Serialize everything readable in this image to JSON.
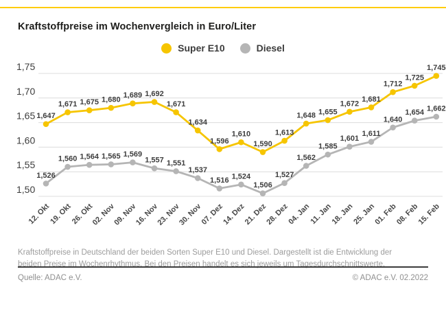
{
  "page": {
    "title": "Kraftstoffpreise im Wochenvergleich in Euro/Liter",
    "footnote": "Kraftstoffpreise in Deutschland der beiden Sorten Super E10 und Diesel. Dargestellt ist die Entwicklung der beiden Preise im Wochenrhythmus. Bei den Preisen handelt es sich jeweils um Tagesdurchschnittswerte.",
    "source": "Quelle: ADAC e.V.",
    "copyright": "© ADAC e.V. 02.2022"
  },
  "colors": {
    "accent_yellow": "#FFCC00",
    "super_e10": "#F6C500",
    "diesel": "#B5B5B5",
    "grid": "#DCDCDC",
    "tick_text": "#3d3d3d",
    "label_text": "#3d3d3d",
    "title_text": "#1d1d1b",
    "muted_text": "#9c9c9c",
    "footer_rule": "#3c3c3c"
  },
  "chart_data": {
    "type": "line",
    "title": "Kraftstoffpreise im Wochenvergleich in Euro/Liter",
    "xlabel": "",
    "ylabel": "Euro/Liter",
    "grid": true,
    "legend_position": "top-center",
    "value_labels": true,
    "decimal_separator": ",",
    "ylim": [
      1.5,
      1.75
    ],
    "y_ticks": [
      "1,75",
      "1,70",
      "1,65",
      "1,60",
      "1,55",
      "1,50"
    ],
    "categories": [
      "12. Okt",
      "19. Okt",
      "26. Okt",
      "02. Nov",
      "09. Nov",
      "16. Nov",
      "23. Nov",
      "30. Nov",
      "07. Dez",
      "14. Dez",
      "21. Dez",
      "28. Dez",
      "04. Jan",
      "11. Jan",
      "18. Jan",
      "25. Jan",
      "01. Feb",
      "08. Feb",
      "15. Feb"
    ],
    "series": [
      {
        "name": "Super E10",
        "color": "#F6C500",
        "values": [
          1.647,
          1.671,
          1.675,
          1.68,
          1.689,
          1.692,
          1.671,
          1.634,
          1.596,
          1.61,
          1.59,
          1.613,
          1.648,
          1.655,
          1.672,
          1.681,
          1.712,
          1.725,
          1.745
        ]
      },
      {
        "name": "Diesel",
        "color": "#B5B5B5",
        "values": [
          1.526,
          1.56,
          1.564,
          1.565,
          1.569,
          1.557,
          1.551,
          1.537,
          1.516,
          1.524,
          1.506,
          1.527,
          1.562,
          1.585,
          1.601,
          1.611,
          1.64,
          1.654,
          1.662
        ]
      }
    ]
  }
}
